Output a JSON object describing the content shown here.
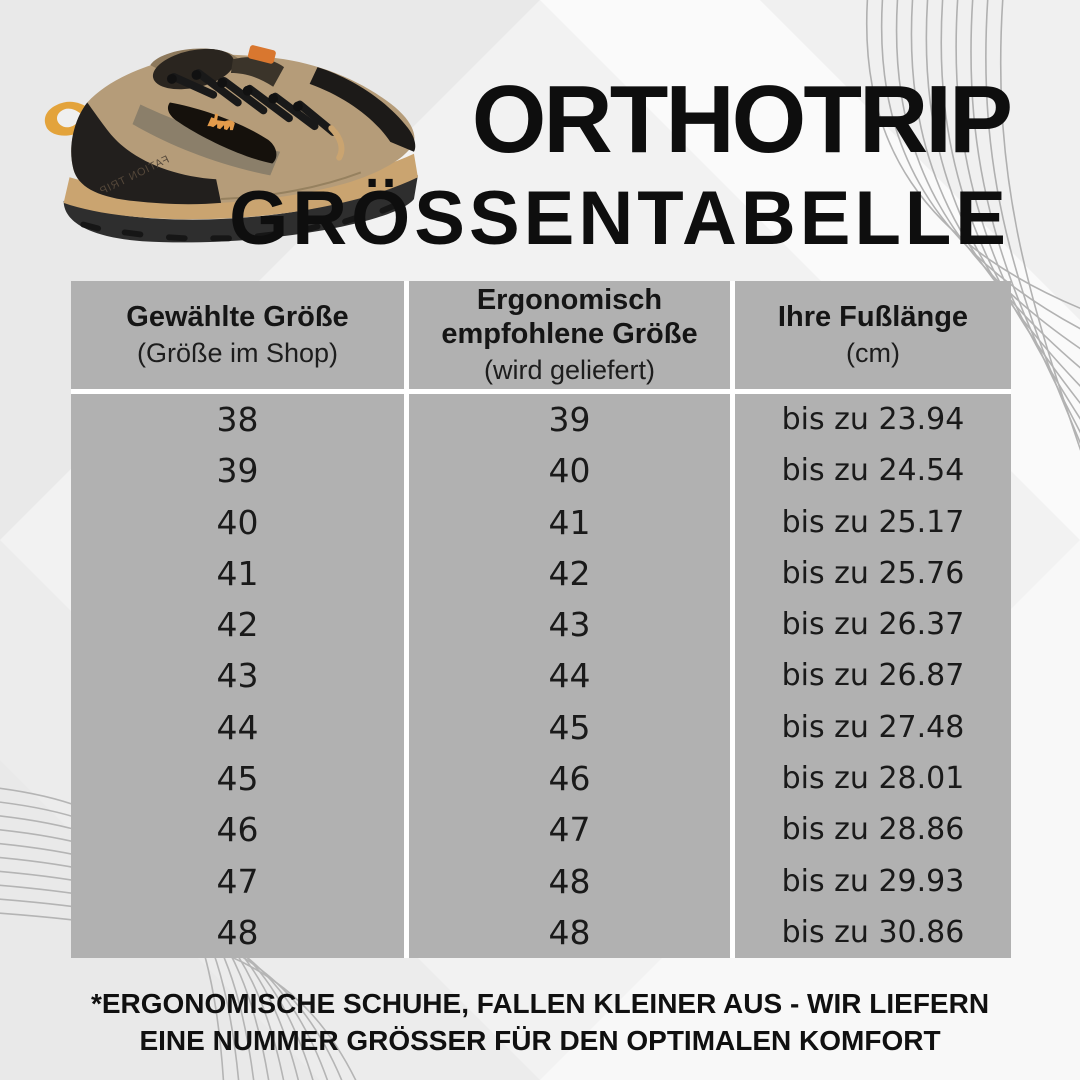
{
  "header": {
    "title_line1": "ORTHOTRIP",
    "title_line2": "GRÖSSENTABELLE"
  },
  "shoe": {
    "side_text": "FATION TRIP"
  },
  "table": {
    "columns": [
      {
        "title": "Gewählte Größe",
        "subtitle": "(Größe im Shop)"
      },
      {
        "title": "Ergonomisch empfohlene Größe",
        "subtitle": "(wird geliefert)"
      },
      {
        "title": "Ihre Fußlänge",
        "subtitle": "(cm)"
      }
    ],
    "rows": [
      {
        "shop_size": "38",
        "delivered_size": "39",
        "foot_length": "bis zu 23.94"
      },
      {
        "shop_size": "39",
        "delivered_size": "40",
        "foot_length": "bis zu 24.54"
      },
      {
        "shop_size": "40",
        "delivered_size": "41",
        "foot_length": "bis zu 25.17"
      },
      {
        "shop_size": "41",
        "delivered_size": "42",
        "foot_length": "bis zu 25.76"
      },
      {
        "shop_size": "42",
        "delivered_size": "43",
        "foot_length": "bis zu 26.37"
      },
      {
        "shop_size": "43",
        "delivered_size": "44",
        "foot_length": "bis zu 26.87"
      },
      {
        "shop_size": "44",
        "delivered_size": "45",
        "foot_length": "bis zu 27.48"
      },
      {
        "shop_size": "45",
        "delivered_size": "46",
        "foot_length": "bis zu 28.01"
      },
      {
        "shop_size": "46",
        "delivered_size": "47",
        "foot_length": "bis zu 28.86"
      },
      {
        "shop_size": "47",
        "delivered_size": "48",
        "foot_length": "bis zu 29.93"
      },
      {
        "shop_size": "48",
        "delivered_size": "48",
        "foot_length": "bis zu 30.86"
      }
    ]
  },
  "footer": {
    "line1": "*ERGONOMISCHE SCHUHE, FALLEN KLEINER AUS - WIR LIEFERN",
    "line2": "EINE NUMMER GRÖSSER FÜR DEN OPTIMALEN KOMFORT"
  },
  "colors": {
    "table_gray": "#b1b1b1",
    "divider_white": "#ffffff",
    "accent_orange": "#e3a33b",
    "text_dark": "#121212",
    "background": "#f2f2f2"
  }
}
